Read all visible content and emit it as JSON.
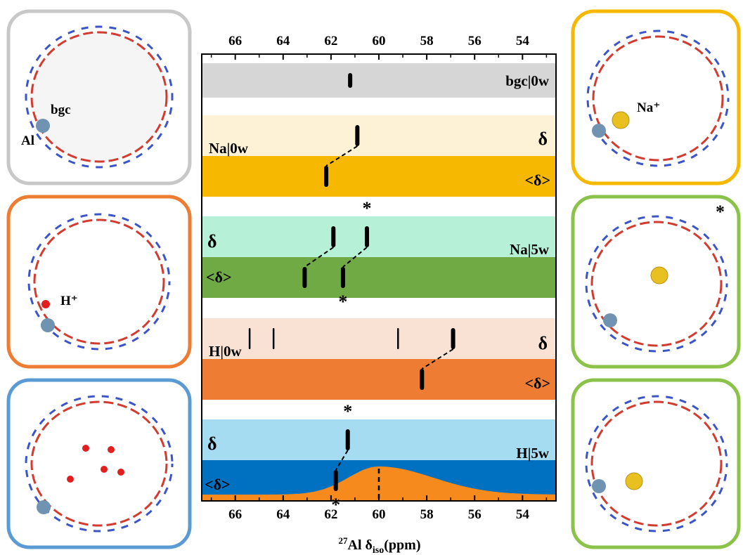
{
  "chart_data": {
    "type": "chart",
    "xlabel_main": "Al δ",
    "xlabel_superscript": "27",
    "xlabel_subscript": "iso",
    "xlabel_unit": "(ppm)",
    "x_axis": {
      "reversed": true,
      "range": [
        67.4,
        52.6
      ],
      "ticks": [
        66,
        64,
        62,
        60,
        58,
        56,
        54
      ]
    },
    "colors": {
      "bgc": "#d6d6d6",
      "na_delta": "#fdf1d6",
      "na_avg": "#f6b800",
      "na5_delta": "#b6f0d7",
      "na5_avg": "#6faa45",
      "h0_delta": "#f9e2d4",
      "h0_avg": "#ee7d33",
      "h5_delta": "#a6dcf2",
      "h5_avg": "#0070c0",
      "h5_dist": "#f68a1c"
    },
    "bands": [
      {
        "label": "bgc|0w",
        "kind": "label",
        "lines": [
          {
            "x": 61.2,
            "width": "thick"
          }
        ]
      },
      {
        "label": "δ",
        "group_label": "Na|0w",
        "lines": [
          {
            "x": 60.9,
            "width": "thick"
          }
        ]
      },
      {
        "label": "<δ>",
        "lines": [
          {
            "x": 62.2,
            "width": "thick"
          }
        ]
      },
      {
        "label": "δ",
        "group_label": "Na|5w",
        "lines": [
          {
            "x": 61.9,
            "width": "thick"
          },
          {
            "x": 60.5,
            "width": "thick",
            "mark": "*"
          }
        ]
      },
      {
        "label": "<δ>",
        "lines": [
          {
            "x": 63.1,
            "width": "thick"
          },
          {
            "x": 61.5,
            "width": "thick",
            "mark": "*"
          }
        ]
      },
      {
        "label": "δ",
        "group_label": "H|0w",
        "lines": [
          {
            "x": 65.4,
            "width": "thin"
          },
          {
            "x": 64.4,
            "width": "thin"
          },
          {
            "x": 59.2,
            "width": "thin"
          },
          {
            "x": 56.9,
            "width": "thick"
          }
        ]
      },
      {
        "label": "<δ>",
        "lines": [
          {
            "x": 58.2,
            "width": "thick"
          }
        ]
      },
      {
        "label": "δ",
        "group_label": "H|5w",
        "lines": [
          {
            "x": 61.3,
            "width": "thick",
            "mark": "*"
          }
        ]
      },
      {
        "label": "<δ>",
        "lines": [
          {
            "x": 61.8,
            "width": "thick",
            "mark": "*"
          },
          {
            "x": 60.0,
            "width": "dashed"
          }
        ],
        "distribution": {
          "center": 60.0
        }
      }
    ],
    "connectors": [
      {
        "from": 60.9,
        "to": 62.2
      },
      {
        "from": 61.9,
        "to": 63.1
      },
      {
        "from": 60.5,
        "to": 61.5
      },
      {
        "from": 56.9,
        "to": 58.2
      },
      {
        "from": 61.3,
        "to": 61.8
      }
    ]
  },
  "panels": {
    "left": [
      {
        "labels": [
          "bgc",
          "Al"
        ]
      },
      {
        "labels": [
          "H⁺"
        ]
      },
      {
        "labels": []
      }
    ],
    "right": [
      {
        "labels": [
          "Na⁺"
        ]
      },
      {
        "labels": [
          "*"
        ]
      },
      {
        "labels": []
      }
    ]
  }
}
